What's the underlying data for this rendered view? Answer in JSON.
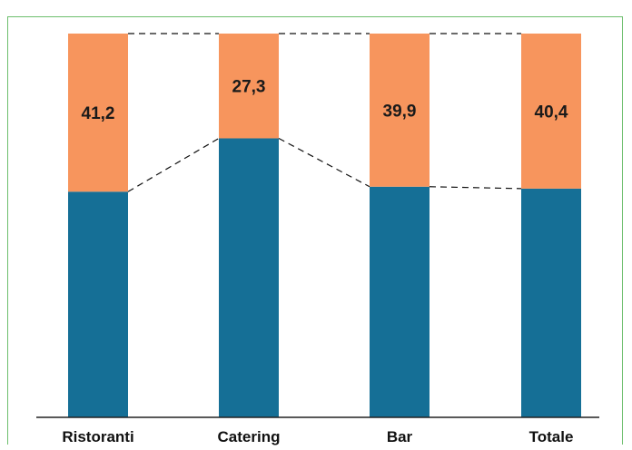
{
  "chart_data": {
    "type": "bar",
    "stacked": true,
    "normalized_100": true,
    "categories": [
      "Ristoranti",
      "Catering",
      "Bar",
      "Totale"
    ],
    "series": [
      {
        "values": [
          58.8,
          72.7,
          60.1,
          59.6
        ],
        "color": "#156f96"
      },
      {
        "values": [
          41.2,
          27.3,
          39.9,
          40.4
        ],
        "color": "#f7955d"
      }
    ],
    "data_labels": [
      "41,2",
      "27,3",
      "39,9",
      "40,4"
    ],
    "ylim": [
      0,
      100
    ],
    "connector_lines": "dashed",
    "grid": false,
    "legend": "none"
  },
  "colors": {
    "frame": "#6dbf6d",
    "axis": "#222222"
  }
}
